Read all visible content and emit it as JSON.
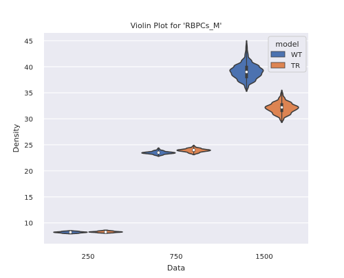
{
  "chart_data": {
    "type": "violin",
    "title": "Violin Plot for 'RBPCs_M'",
    "xlabel": "Data",
    "ylabel": "Density",
    "categories": [
      "250",
      "750",
      "1500"
    ],
    "ylim": [
      6,
      46.5
    ],
    "yticks": [
      10,
      15,
      20,
      25,
      30,
      35,
      40,
      45
    ],
    "grid": true,
    "legend": {
      "title": "model",
      "position": "top-right"
    },
    "series": [
      {
        "name": "WT",
        "color": "#4c72b0",
        "violins": [
          {
            "min": 7.9,
            "q1": 8.1,
            "median": 8.2,
            "q3": 8.3,
            "max": 8.5,
            "profile": [
              [
                7.9,
                0.1
              ],
              [
                8.0,
                0.5
              ],
              [
                8.2,
                1.0
              ],
              [
                8.35,
                0.55
              ],
              [
                8.5,
                0.1
              ]
            ]
          },
          {
            "min": 22.8,
            "q1": 23.3,
            "median": 23.5,
            "q3": 23.7,
            "max": 24.4,
            "profile": [
              [
                22.8,
                0.03
              ],
              [
                23.1,
                0.3
              ],
              [
                23.45,
                1.0
              ],
              [
                23.8,
                0.35
              ],
              [
                24.1,
                0.08
              ],
              [
                24.4,
                0.02
              ]
            ]
          },
          {
            "min": 35.3,
            "q1": 37.8,
            "median": 39.0,
            "q3": 40.2,
            "max": 45.0,
            "profile": [
              [
                35.3,
                0.02
              ],
              [
                36.3,
                0.12
              ],
              [
                37.4,
                0.55
              ],
              [
                38.6,
                0.9
              ],
              [
                39.3,
                1.0
              ],
              [
                40.1,
                0.75
              ],
              [
                41.0,
                0.32
              ],
              [
                42.0,
                0.1
              ],
              [
                43.5,
                0.04
              ],
              [
                45.0,
                0.01
              ]
            ]
          }
        ]
      },
      {
        "name": "TR",
        "color": "#dd8452",
        "violins": [
          {
            "min": 8.0,
            "q1": 8.1,
            "median": 8.25,
            "q3": 8.4,
            "max": 8.6,
            "profile": [
              [
                8.0,
                0.1
              ],
              [
                8.1,
                0.5
              ],
              [
                8.25,
                1.0
              ],
              [
                8.4,
                0.5
              ],
              [
                8.6,
                0.1
              ]
            ]
          },
          {
            "min": 23.1,
            "q1": 23.7,
            "median": 24.0,
            "q3": 24.2,
            "max": 24.9,
            "profile": [
              [
                23.1,
                0.04
              ],
              [
                23.5,
                0.35
              ],
              [
                23.95,
                1.0
              ],
              [
                24.3,
                0.45
              ],
              [
                24.6,
                0.1
              ],
              [
                24.9,
                0.02
              ]
            ]
          },
          {
            "min": 29.3,
            "q1": 31.3,
            "median": 32.2,
            "q3": 33.0,
            "max": 35.5,
            "profile": [
              [
                29.3,
                0.02
              ],
              [
                30.0,
                0.12
              ],
              [
                31.0,
                0.55
              ],
              [
                32.2,
                1.0
              ],
              [
                33.0,
                0.6
              ],
              [
                33.8,
                0.2
              ],
              [
                34.6,
                0.07
              ],
              [
                35.5,
                0.01
              ]
            ]
          }
        ]
      }
    ]
  }
}
